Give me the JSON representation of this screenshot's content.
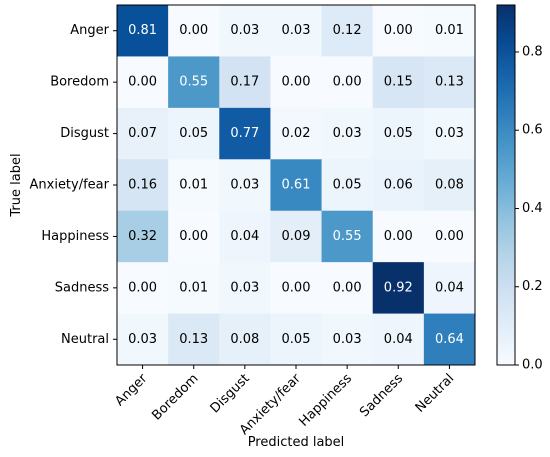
{
  "chart_data": {
    "type": "heatmap",
    "title": "",
    "xlabel": "Predicted label",
    "ylabel": "True label",
    "x_categories": [
      "Anger",
      "Boredom",
      "Disgust",
      "Anxiety/fear",
      "Happiness",
      "Sadness",
      "Neutral"
    ],
    "y_categories": [
      "Anger",
      "Boredom",
      "Disgust",
      "Anxiety/fear",
      "Happiness",
      "Sadness",
      "Neutral"
    ],
    "values": [
      [
        0.81,
        0.0,
        0.03,
        0.03,
        0.12,
        0.0,
        0.01
      ],
      [
        0.0,
        0.55,
        0.17,
        0.0,
        0.0,
        0.15,
        0.13
      ],
      [
        0.07,
        0.05,
        0.77,
        0.02,
        0.03,
        0.05,
        0.03
      ],
      [
        0.16,
        0.01,
        0.03,
        0.61,
        0.05,
        0.06,
        0.08
      ],
      [
        0.32,
        0.0,
        0.04,
        0.09,
        0.55,
        0.0,
        0.0
      ],
      [
        0.0,
        0.01,
        0.03,
        0.0,
        0.0,
        0.92,
        0.04
      ],
      [
        0.03,
        0.13,
        0.08,
        0.05,
        0.03,
        0.04,
        0.64
      ]
    ],
    "colormap": "Blues",
    "colorbar": {
      "range": [
        0.0,
        0.92
      ],
      "ticks": [
        0.0,
        0.2,
        0.4,
        0.6,
        0.8
      ],
      "tick_labels": [
        "0.0",
        "0.2",
        "0.4",
        "0.6",
        "0.8"
      ]
    },
    "grid": false
  }
}
